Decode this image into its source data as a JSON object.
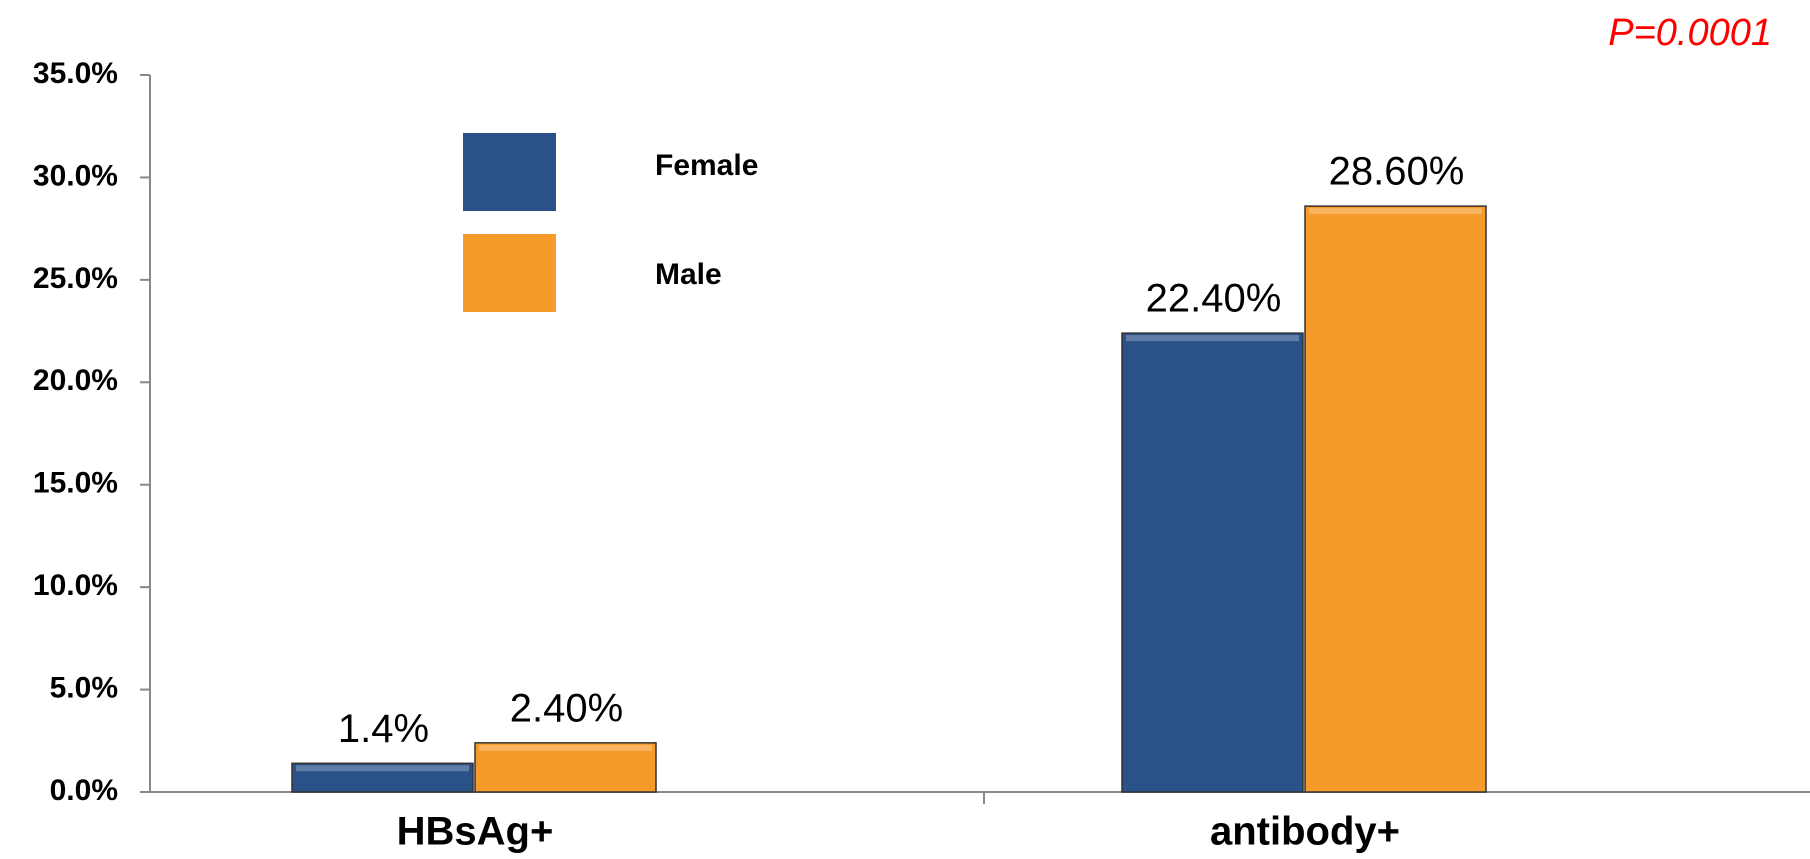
{
  "chart_data": {
    "type": "bar",
    "annotation": "P=0.0001",
    "categories": [
      "HBsAg+",
      "antibody+"
    ],
    "series": [
      {
        "name": "Female",
        "color": "#2a5288",
        "values": [
          1.4,
          22.4
        ],
        "value_labels": [
          "1.4%",
          "22.40%"
        ]
      },
      {
        "name": "Male",
        "color": "#f59a2b",
        "values": [
          2.4,
          28.6
        ],
        "value_labels": [
          "2.40%",
          "28.60%"
        ]
      }
    ],
    "ylim": [
      0,
      35
    ],
    "yticks": [
      {
        "value": 0,
        "label": "0.0%"
      },
      {
        "value": 5,
        "label": "5.0%"
      },
      {
        "value": 10,
        "label": "10.0%"
      },
      {
        "value": 15,
        "label": "15.0%"
      },
      {
        "value": 20,
        "label": "20.0%"
      },
      {
        "value": 25,
        "label": "25.0%"
      },
      {
        "value": 30,
        "label": "30.0%"
      },
      {
        "value": 35,
        "label": "35.0%"
      }
    ],
    "grid": false
  }
}
